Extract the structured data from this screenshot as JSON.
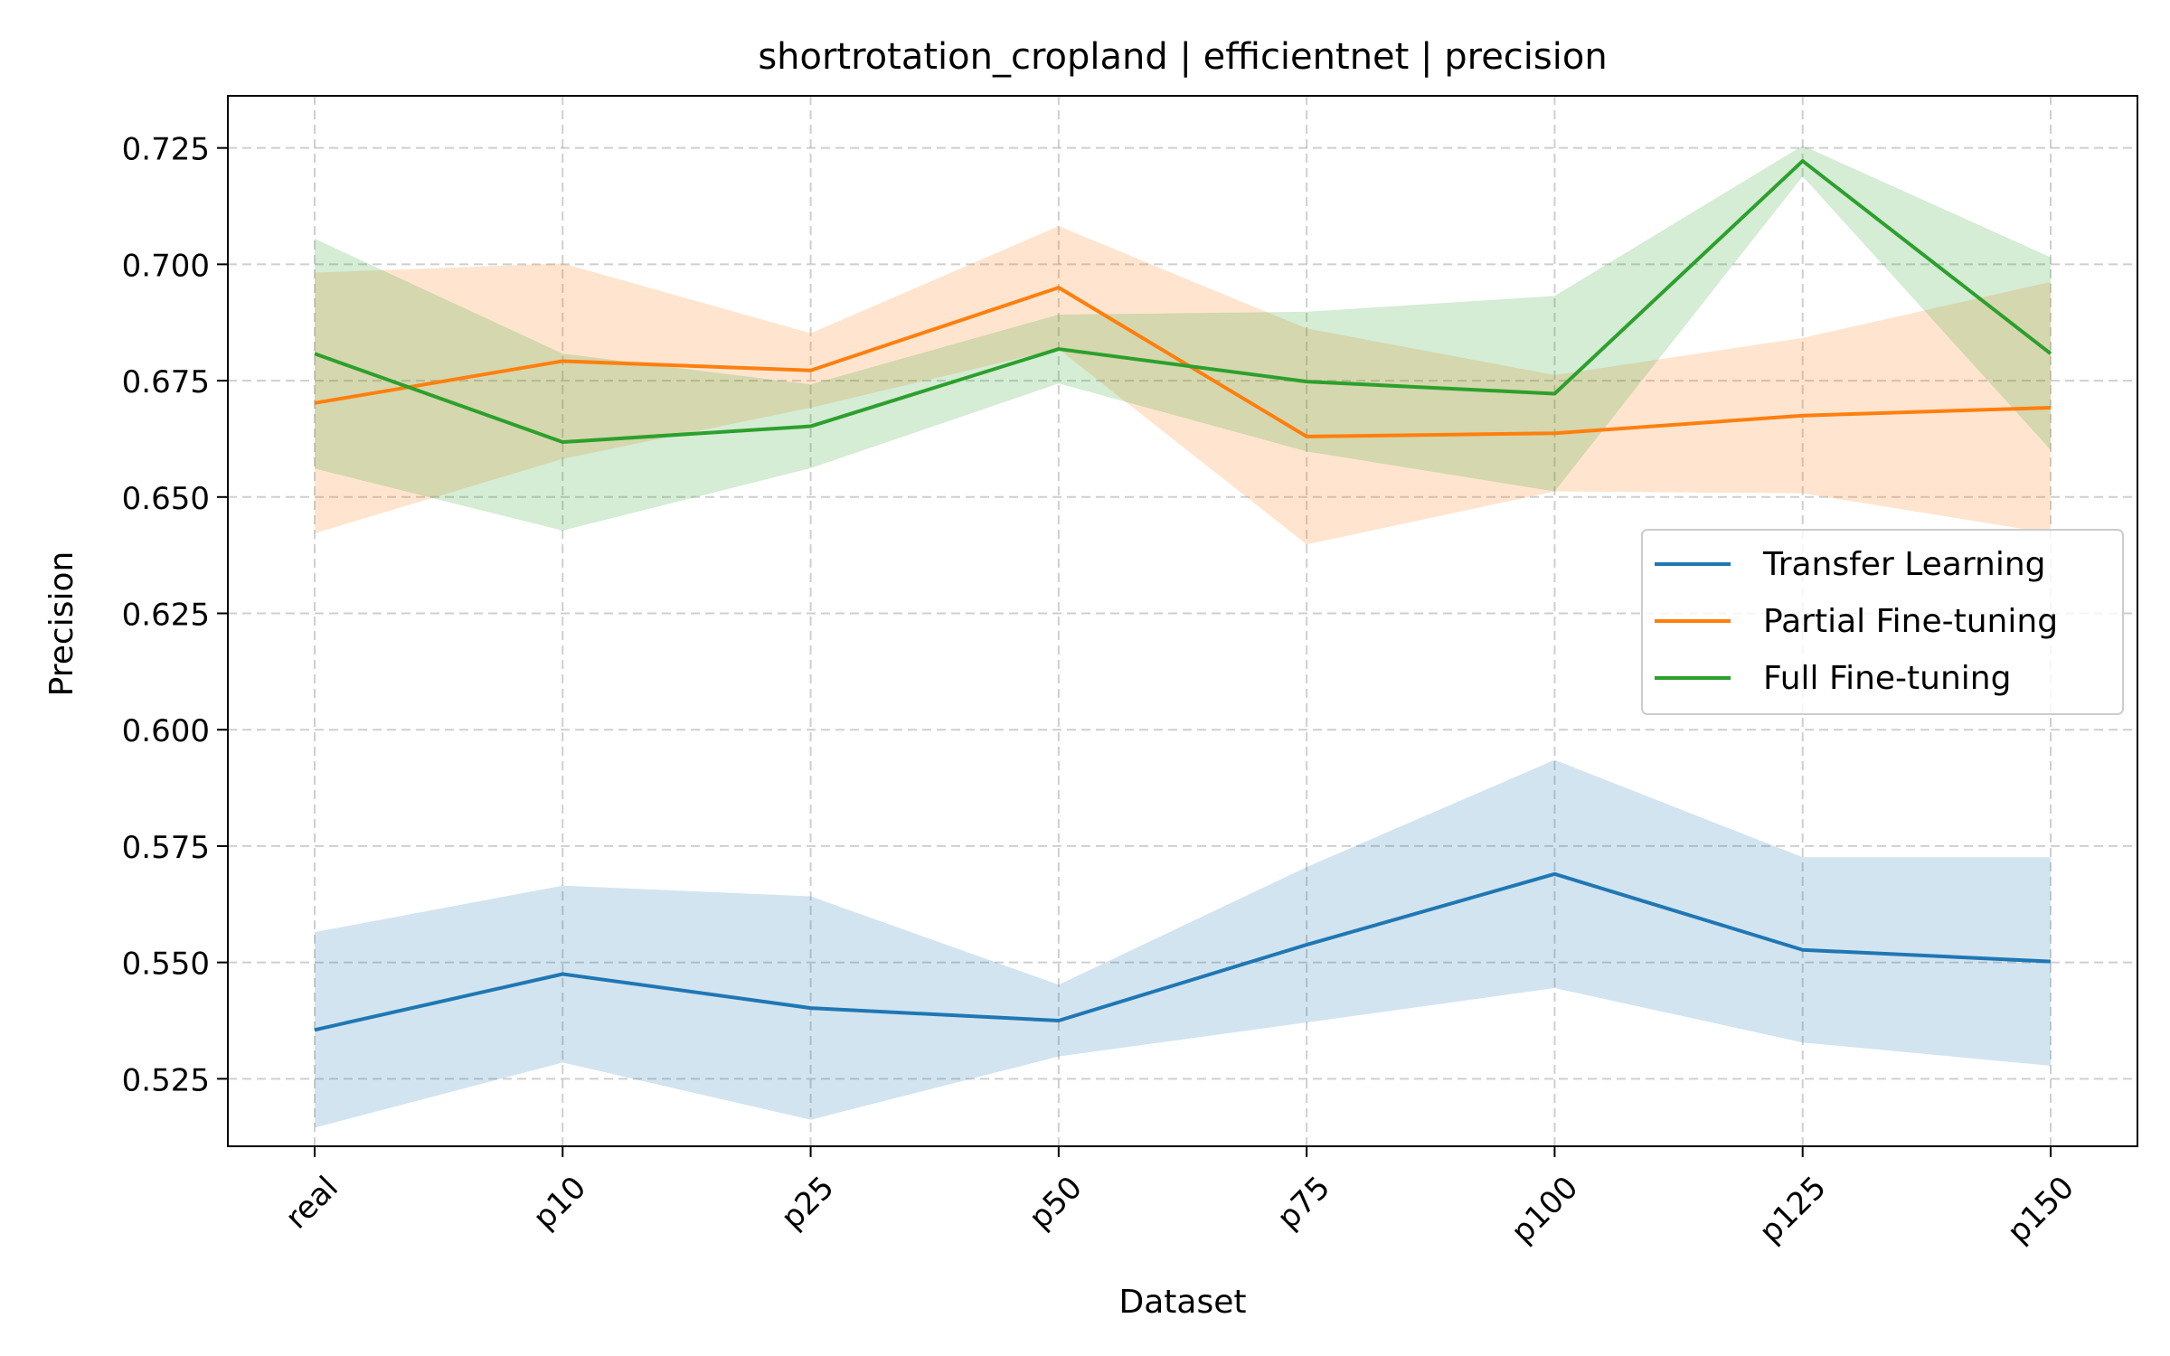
{
  "chart_data": {
    "type": "line",
    "title": "shortrotation_cropland | efficientnet | precision",
    "xlabel": "Dataset",
    "ylabel": "Precision",
    "categories": [
      "real",
      "p10",
      "p25",
      "p50",
      "p75",
      "p100",
      "p125",
      "p150"
    ],
    "ylim": [
      0.5105,
      0.7362
    ],
    "yticks": [
      "0.525",
      "0.550",
      "0.575",
      "0.600",
      "0.625",
      "0.650",
      "0.675",
      "0.700",
      "0.725"
    ],
    "grid": true,
    "legend_position": "center-right",
    "series": [
      {
        "name": "Transfer Learning",
        "color": "#1f77b4",
        "values": [
          0.5355,
          0.5475,
          0.5402,
          0.5375,
          0.5538,
          0.569,
          0.5527,
          0.5502
        ],
        "upper": [
          0.5565,
          0.5665,
          0.5642,
          0.5452,
          0.5705,
          0.5935,
          0.5726,
          0.5726
        ],
        "lower": [
          0.5145,
          0.5285,
          0.5162,
          0.5298,
          0.5371,
          0.5445,
          0.5328,
          0.5278
        ]
      },
      {
        "name": "Partial Fine-tuning",
        "color": "#ff7f0e",
        "values": [
          0.6702,
          0.6792,
          0.6772,
          0.695,
          0.663,
          0.6637,
          0.6675,
          0.6692
        ],
        "upper": [
          0.6982,
          0.7002,
          0.6852,
          0.7082,
          0.6862,
          0.6762,
          0.6842,
          0.6962
        ],
        "lower": [
          0.6422,
          0.6582,
          0.6692,
          0.6818,
          0.6398,
          0.6512,
          0.6508,
          0.6422
        ]
      },
      {
        "name": "Full Fine-tuning",
        "color": "#2ca02c",
        "values": [
          0.6808,
          0.6618,
          0.6652,
          0.6818,
          0.6748,
          0.6722,
          0.7222,
          0.6808
        ],
        "upper": [
          0.7055,
          0.6808,
          0.6742,
          0.6892,
          0.6898,
          0.6932,
          0.7255,
          0.7015
        ],
        "lower": [
          0.6561,
          0.6428,
          0.6562,
          0.6744,
          0.6598,
          0.6512,
          0.7189,
          0.6601
        ]
      }
    ]
  }
}
